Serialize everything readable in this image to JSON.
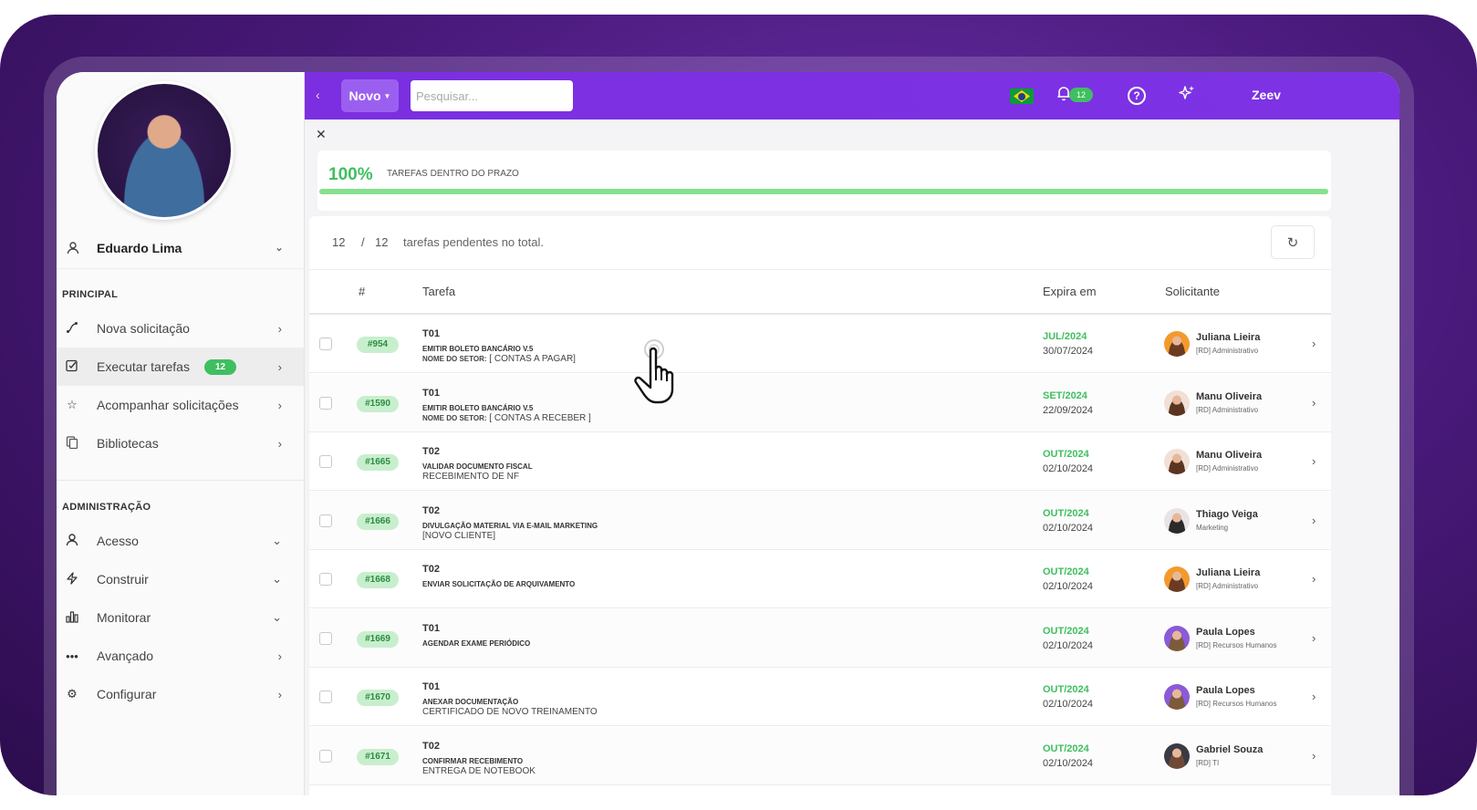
{
  "sidebar": {
    "user_name": "Eduardo Lima",
    "section_principal": "PRINCIPAL",
    "section_admin": "ADMINISTRAÇÃO",
    "items_principal": [
      {
        "label": "Nova solicitação",
        "icon": "route-icon"
      },
      {
        "label": "Executar tarefas",
        "icon": "checklist-icon",
        "badge": "12"
      },
      {
        "label": "Acompanhar solicitações",
        "icon": "star-icon"
      },
      {
        "label": "Bibliotecas",
        "icon": "documents-icon"
      }
    ],
    "items_admin": [
      {
        "label": "Acesso",
        "icon": "user-icon"
      },
      {
        "label": "Construir",
        "icon": "bolt-icon"
      },
      {
        "label": "Monitorar",
        "icon": "bar-chart-icon"
      },
      {
        "label": "Avançado",
        "icon": "more-icon"
      },
      {
        "label": "Configurar",
        "icon": "gear-icon"
      }
    ]
  },
  "header": {
    "new_label": "Novo",
    "search_placeholder": "Pesquisar...",
    "notifications_count": "12",
    "brand": "Zeev",
    "accent": "#7b2fe0"
  },
  "progress": {
    "percent_label": "100%",
    "label": "TAREFAS DENTRO DO PRAZO",
    "value": 1.0
  },
  "summary": {
    "pending": "12",
    "separator": "/",
    "total": "12",
    "text": "tarefas pendentes no total."
  },
  "table": {
    "headers": {
      "id": "#",
      "task": "Tarefa",
      "expires": "Expira em",
      "requester": "Solicitante"
    },
    "rows": [
      {
        "id": "#954",
        "code": "T01",
        "title": "EMITIR BOLETO BANCÁRIO V.5",
        "sub_bold": "NOME DO SETOR:",
        "sub": " [ CONTAS A PAGAR]",
        "month": "JUL/2024",
        "date": "30/07/2024",
        "name": "Juliana Lieira",
        "dept": "[RD] Administrativo"
      },
      {
        "id": "#1590",
        "code": "T01",
        "title": "EMITIR BOLETO BANCÁRIO V.5",
        "sub_bold": "NOME DO SETOR:",
        "sub": " [ CONTAS  A RECEBER ]",
        "month": "SET/2024",
        "date": "22/09/2024",
        "name": "Manu Oliveira",
        "dept": "[RD] Administrativo"
      },
      {
        "id": "#1665",
        "code": "T02",
        "title": "VALIDAR DOCUMENTO FISCAL",
        "sub_bold": "",
        "sub": "RECEBIMENTO DE NF",
        "month": "OUT/2024",
        "date": "02/10/2024",
        "name": "Manu Oliveira",
        "dept": "[RD] Administrativo"
      },
      {
        "id": "#1666",
        "code": "T02",
        "title": "DIVULGAÇÃO MATERIAL VIA E-MAIL MARKETING",
        "sub_bold": "",
        "sub": "[NOVO CLIENTE]",
        "month": "OUT/2024",
        "date": "02/10/2024",
        "name": "Thiago Veiga",
        "dept": "Marketing"
      },
      {
        "id": "#1668",
        "code": "T02",
        "title": "ENVIAR SOLICITAÇÃO DE ARQUIVAMENTO",
        "sub_bold": "",
        "sub": "",
        "month": "OUT/2024",
        "date": "02/10/2024",
        "name": "Juliana Lieira",
        "dept": "[RD] Administrativo"
      },
      {
        "id": "#1669",
        "code": "T01",
        "title": "AGENDAR EXAME PERIÓDICO",
        "sub_bold": "",
        "sub": "",
        "month": "OUT/2024",
        "date": "02/10/2024",
        "name": "Paula Lopes",
        "dept": "[RD] Recursos Humanos"
      },
      {
        "id": "#1670",
        "code": "T01",
        "title": "ANEXAR DOCUMENTAÇÃO",
        "sub_bold": "",
        "sub": "CERTIFICADO DE NOVO TREINAMENTO",
        "month": "OUT/2024",
        "date": "02/10/2024",
        "name": "Paula Lopes",
        "dept": "[RD] Recursos Humanos"
      },
      {
        "id": "#1671",
        "code": "T02",
        "title": "CONFIRMAR RECEBIMENTO",
        "sub_bold": "",
        "sub": "ENTREGA DE NOTEBOOK",
        "month": "OUT/2024",
        "date": "02/10/2024",
        "name": "Gabriel Souza",
        "dept": "[RD] TI"
      }
    ]
  }
}
